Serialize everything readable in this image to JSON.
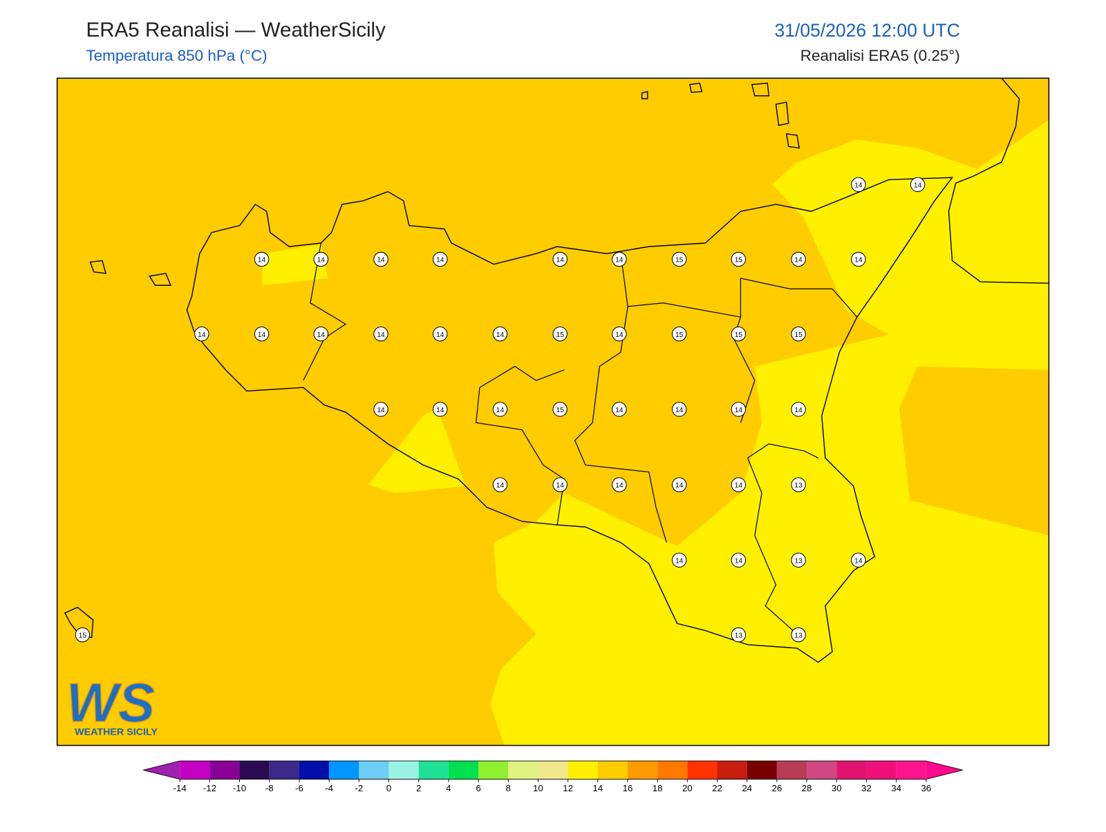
{
  "header": {
    "title": "ERA5 Reanalisi — WeatherSicily",
    "subtitle": "Temperatura 850 hPa (°C)",
    "datetime": "31/05/2026 12:00 UTC",
    "source": "Reanalisi ERA5 (0.25°)"
  },
  "logo": {
    "mark": "WS",
    "text": "WEATHER SICILY"
  },
  "grid_values": [
    14,
    14,
    14,
    14,
    14,
    14,
    14,
    14,
    15,
    15,
    14,
    14,
    14,
    14,
    14,
    14,
    14,
    14,
    15,
    14,
    15,
    15,
    15,
    14,
    14,
    14,
    15,
    14,
    14,
    14,
    14,
    14,
    14,
    14,
    14,
    14,
    13,
    14,
    14,
    13,
    14,
    15,
    13,
    13
  ],
  "colorbar": {
    "ticks": [
      -14,
      -12,
      -10,
      -8,
      -6,
      -4,
      -2,
      0,
      2,
      4,
      6,
      8,
      10,
      12,
      14,
      16,
      18,
      20,
      22,
      24,
      26,
      28,
      30,
      32,
      34,
      36
    ],
    "colors": [
      "#c400c4",
      "#8a0096",
      "#2a0a50",
      "#3c2888",
      "#0010a8",
      "#0096ff",
      "#6ecff6",
      "#9bf3e6",
      "#1ee096",
      "#00e050",
      "#8ef030",
      "#dff280",
      "#f0e68c",
      "#fff000",
      "#ffcc00",
      "#ff9a00",
      "#ff7800",
      "#ff3200",
      "#c81e10",
      "#780000",
      "#b83c54",
      "#d04882",
      "#e0146e",
      "#f0107c",
      "#ff1490"
    ],
    "under_color": "#a020b0",
    "over_color": "#ff0a8c"
  }
}
